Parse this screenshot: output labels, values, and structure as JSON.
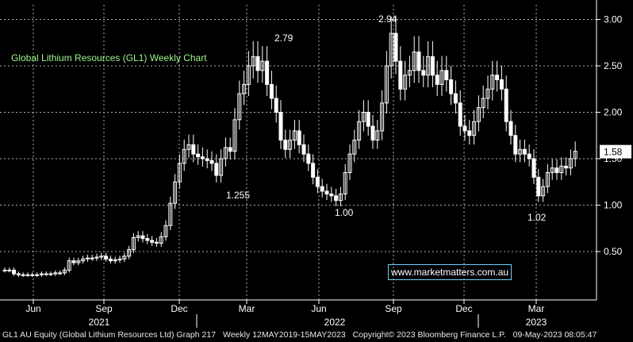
{
  "chart_data": {
    "type": "candlestick",
    "title": "Global Lithium Resources (GL1) Weekly Chart",
    "watermark": "www.marketmatters.com.au",
    "last_price_label": "1.58",
    "ylim": [
      0,
      3.1
    ],
    "y_ticks": [
      "0.50",
      "1.00",
      "1.50",
      "2.00",
      "2.50",
      "3.00"
    ],
    "y_tick_values": [
      0.5,
      1.0,
      1.5,
      2.0,
      2.5,
      3.0
    ],
    "month_labels": [
      "Jun",
      "Sep",
      "Dec",
      "Mar",
      "Jun",
      "Sep",
      "Dec",
      "Mar"
    ],
    "year_labels": [
      "2021",
      "2022",
      "2023"
    ],
    "annotations": [
      {
        "text": "2.79",
        "value": 2.79
      },
      {
        "text": "1.255",
        "value": 1.255
      },
      {
        "text": "2.94",
        "value": 2.94
      },
      {
        "text": "1.00",
        "value": 1.0
      },
      {
        "text": "1.02",
        "value": 1.02
      }
    ],
    "closes": [
      0.3,
      0.3,
      0.26,
      0.25,
      0.25,
      0.25,
      0.25,
      0.25,
      0.26,
      0.26,
      0.26,
      0.27,
      0.27,
      0.3,
      0.4,
      0.38,
      0.4,
      0.42,
      0.43,
      0.43,
      0.44,
      0.45,
      0.42,
      0.4,
      0.41,
      0.42,
      0.45,
      0.52,
      0.65,
      0.67,
      0.64,
      0.62,
      0.6,
      0.59,
      0.66,
      0.78,
      1.02,
      1.25,
      1.45,
      1.6,
      1.65,
      1.55,
      1.52,
      1.5,
      1.48,
      1.45,
      1.32,
      1.5,
      1.62,
      1.58,
      1.92,
      2.2,
      2.3,
      2.5,
      2.6,
      2.45,
      2.55,
      2.3,
      2.15,
      2.0,
      1.7,
      1.6,
      1.7,
      1.8,
      1.65,
      1.55,
      1.45,
      1.3,
      1.2,
      1.15,
      1.12,
      1.1,
      1.05,
      1.12,
      1.35,
      1.55,
      1.7,
      1.9,
      2.0,
      1.85,
      1.7,
      1.8,
      2.1,
      2.5,
      2.85,
      2.55,
      2.25,
      2.4,
      2.45,
      2.65,
      2.45,
      2.4,
      2.6,
      2.4,
      2.3,
      2.45,
      2.35,
      2.2,
      2.1,
      1.85,
      1.8,
      1.75,
      1.9,
      2.05,
      2.15,
      2.25,
      2.4,
      2.35,
      2.25,
      1.9,
      1.75,
      1.55,
      1.6,
      1.55,
      1.5,
      1.3,
      1.1,
      1.2,
      1.35,
      1.4,
      1.35,
      1.42,
      1.4,
      1.5,
      1.58
    ]
  },
  "footer": {
    "security": "GL1 AU Equity (Global Lithium Resources Ltd) Graph 217",
    "range": "Weekly 12MAY2019-15MAY2023",
    "copyright": "Copyright© 2023 Bloomberg Finance L.P.",
    "timestamp": "09-May-2023 08:05:47"
  },
  "colors": {
    "background": "#000000",
    "candle": "#ffffff",
    "title": "#9ef58c",
    "watermark_border": "#6fd0ff",
    "grid": "#b0b0b0"
  }
}
